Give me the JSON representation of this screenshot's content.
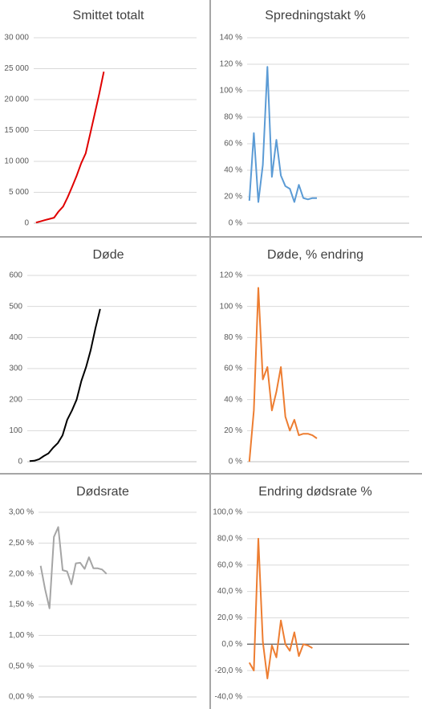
{
  "chart_data": [
    {
      "type": "line",
      "title": "Smittet totalt",
      "color": "#e00000",
      "grid": true,
      "ylim": [
        0,
        30000
      ],
      "yticks": [
        0,
        {
          "value": 5000,
          "label": "5 000"
        },
        {
          "value": 10000,
          "label": "10 000"
        },
        {
          "value": 15000,
          "label": "15 000"
        },
        {
          "value": 20000,
          "label": "20 000"
        },
        {
          "value": 25000,
          "label": "25 000"
        },
        {
          "value": 30000,
          "label": "30 000"
        }
      ],
      "categories": [
        null,
        null,
        null,
        null,
        null,
        null,
        null,
        null,
        null,
        null,
        null,
        null,
        null,
        null,
        null,
        null,
        null,
        null,
        null,
        null,
        null,
        null,
        null,
        null,
        null,
        null,
        null,
        null,
        null,
        null,
        null,
        null,
        null,
        null,
        null,
        null
      ],
      "values": [
        100,
        300,
        500,
        700,
        900,
        1900,
        2700,
        4200,
        5900,
        7700,
        9700,
        11300,
        14500,
        17700,
        21000,
        24500,
        null,
        null,
        null,
        null,
        null,
        null,
        null,
        null,
        null,
        null,
        null,
        null,
        null,
        null,
        null,
        null,
        null,
        null,
        null,
        null
      ]
    },
    {
      "type": "line",
      "title": "Spredningstakt %",
      "color": "#5b9bd5",
      "grid": true,
      "ylim": [
        0,
        140
      ],
      "yticks": [
        {
          "value": 0,
          "label": "0 %"
        },
        {
          "value": 20,
          "label": "20 %"
        },
        {
          "value": 40,
          "label": "40 %"
        },
        {
          "value": 60,
          "label": "60 %"
        },
        {
          "value": 80,
          "label": "80 %"
        },
        {
          "value": 100,
          "label": "100 %"
        },
        {
          "value": 120,
          "label": "120 %"
        },
        {
          "value": 140,
          "label": "140 %"
        }
      ],
      "categories": [
        null,
        null,
        null,
        null,
        null,
        null,
        null,
        null,
        null,
        null,
        null,
        null,
        null,
        null,
        null,
        null,
        null,
        null,
        null,
        null,
        null,
        null,
        null,
        null,
        null,
        null,
        null,
        null,
        null,
        null,
        null,
        null,
        null,
        null,
        null,
        null
      ],
      "values": [
        17,
        68,
        16,
        44,
        118,
        35,
        63,
        36,
        28,
        26,
        16,
        29,
        19,
        18,
        19,
        19,
        null,
        null,
        null,
        null,
        null,
        null,
        null,
        null,
        null,
        null,
        null,
        null,
        null,
        null,
        null,
        null,
        null,
        null,
        null,
        null
      ]
    },
    {
      "type": "line",
      "title": "Døde",
      "color": "#000000",
      "grid": true,
      "ylim": [
        0,
        600
      ],
      "yticks": [
        0,
        100,
        200,
        300,
        400,
        500,
        600
      ],
      "categories": [
        null,
        null,
        null,
        null,
        null,
        null,
        null,
        null,
        null,
        null,
        null,
        null,
        null,
        null,
        null,
        null,
        null,
        null,
        null,
        null,
        null,
        null,
        null,
        null,
        null,
        null,
        null,
        null,
        null,
        null,
        null,
        null,
        null,
        null,
        null,
        null
      ],
      "values": [
        2,
        3,
        8,
        18,
        27,
        45,
        60,
        85,
        135,
        165,
        200,
        260,
        305,
        360,
        430,
        492,
        null,
        null,
        null,
        null,
        null,
        null,
        null,
        null,
        null,
        null,
        null,
        null,
        null,
        null,
        null,
        null,
        null,
        null,
        null,
        null
      ]
    },
    {
      "type": "line",
      "title": "Døde, % endring",
      "color": "#ed7d31",
      "grid": true,
      "ylim": [
        0,
        120
      ],
      "yticks": [
        {
          "value": 0,
          "label": "0 %"
        },
        {
          "value": 20,
          "label": "20 %"
        },
        {
          "value": 40,
          "label": "40 %"
        },
        {
          "value": 60,
          "label": "60 %"
        },
        {
          "value": 80,
          "label": "80 %"
        },
        {
          "value": 100,
          "label": "100 %"
        },
        {
          "value": 120,
          "label": "120 %"
        }
      ],
      "categories": [
        null,
        null,
        null,
        null,
        null,
        null,
        null,
        null,
        null,
        null,
        null,
        null,
        null,
        null,
        null,
        null,
        null,
        null,
        null,
        null,
        null,
        null,
        null,
        null,
        null,
        null,
        null,
        null,
        null,
        null,
        null,
        null,
        null,
        null,
        null,
        null
      ],
      "values": [
        0,
        33,
        112,
        53,
        61,
        33,
        45,
        61,
        29,
        20,
        27,
        17,
        18,
        18,
        17,
        15,
        null,
        null,
        null,
        null,
        null,
        null,
        null,
        null,
        null,
        null,
        null,
        null,
        null,
        null,
        null,
        null,
        null,
        null,
        null,
        null
      ]
    },
    {
      "type": "line",
      "title": "Dødsrate",
      "color": "#a5a5a5",
      "grid": true,
      "ylim": [
        0,
        3
      ],
      "yticks": [
        {
          "value": 0,
          "label": "0,00 %"
        },
        {
          "value": 0.5,
          "label": "0,50 %"
        },
        {
          "value": 1,
          "label": "1,00 %"
        },
        {
          "value": 1.5,
          "label": "1,50 %"
        },
        {
          "value": 2,
          "label": "2,00 %"
        },
        {
          "value": 2.5,
          "label": "2,50 %"
        },
        {
          "value": 3,
          "label": "3,00 %"
        }
      ],
      "categories": [
        null,
        null,
        null,
        null,
        null,
        null,
        null,
        null,
        null,
        null,
        null,
        null,
        null,
        null,
        null,
        null,
        null,
        null,
        null,
        null,
        null,
        null,
        null,
        null,
        null,
        null,
        null,
        null,
        null,
        null,
        null,
        null,
        null,
        null,
        null,
        null
      ],
      "values": [
        2.13,
        1.75,
        1.44,
        2.6,
        2.76,
        2.06,
        2.04,
        1.83,
        2.17,
        2.18,
        2.08,
        2.27,
        2.09,
        2.09,
        2.07,
        2.0,
        null,
        null,
        null,
        null,
        null,
        null,
        null,
        null,
        null,
        null,
        null,
        null,
        null,
        null,
        null,
        null,
        null,
        null,
        null,
        null
      ]
    },
    {
      "type": "line",
      "title": "Endring dødsrate %",
      "color": "#ed7d31",
      "grid": true,
      "ylim": [
        -40,
        100
      ],
      "yticks": [
        {
          "value": -40,
          "label": "-40,0 %"
        },
        {
          "value": -20,
          "label": "-20,0 %"
        },
        {
          "value": 0,
          "label": "0,0 %"
        },
        {
          "value": 20,
          "label": "20,0 %"
        },
        {
          "value": 40,
          "label": "40,0 %"
        },
        {
          "value": 60,
          "label": "60,0 %"
        },
        {
          "value": 80,
          "label": "80,0 %"
        },
        {
          "value": 100,
          "label": "100,0 %"
        }
      ],
      "categories": [
        null,
        null,
        null,
        null,
        null,
        null,
        null,
        null,
        null,
        null,
        null,
        null,
        null,
        null,
        null,
        null,
        null,
        null,
        null,
        null,
        null,
        null,
        null,
        null,
        null,
        null,
        null,
        null,
        null,
        null,
        null,
        null,
        null,
        null,
        null,
        null
      ],
      "values": [
        -14,
        -20,
        80,
        2,
        -26,
        -1,
        -10,
        18,
        0,
        -5,
        9,
        -9,
        0,
        -1,
        -3,
        null,
        null,
        null,
        null,
        null,
        null,
        null,
        null,
        null,
        null,
        null,
        null,
        null,
        null,
        null,
        null,
        null,
        null,
        null,
        null,
        null
      ]
    }
  ]
}
